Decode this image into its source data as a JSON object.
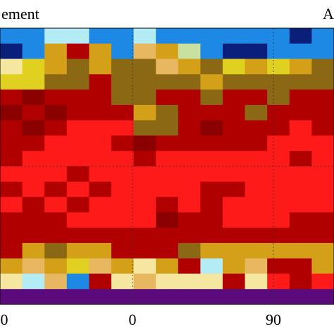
{
  "panel": {
    "title": "ement",
    "label": "A"
  },
  "x_tick_labels": [
    "0",
    "0",
    "90"
  ],
  "cell_colors": [
    [
      "#1e88e5",
      "#1e88e5",
      "#b3ecf5",
      "#b3ecf5",
      "#1e88e5",
      "#1e88e5",
      "#b3ecf5",
      "#1e88e5",
      "#1e88e5",
      "#1e88e5",
      "#1e88e5",
      "#1e88e5",
      "#1e88e5",
      "#0a1f7a",
      "#1e88e5"
    ],
    [
      "#0a1f7a",
      "#1e88e5",
      "#d4a017",
      "#b00000",
      "#d4a017",
      "#1e88e5",
      "#e8b860",
      "#d4a017",
      "#c8e0a0",
      "#1e88e5",
      "#0a1f7a",
      "#0a1f7a",
      "#1e88e5",
      "#1e88e5",
      "#1e88e5"
    ],
    [
      "#f5e6a0",
      "#e0d020",
      "#d4a017",
      "#8b6914",
      "#d4a017",
      "#8b6914",
      "#8b6914",
      "#e8b860",
      "#d4a017",
      "#8b6914",
      "#e0d020",
      "#d4a017",
      "#e0d020",
      "#d4a017",
      "#8b6914"
    ],
    [
      "#e0d020",
      "#e0d020",
      "#8b6914",
      "#8b6914",
      "#b00000",
      "#8b6914",
      "#8b6914",
      "#8b6914",
      "#8b6914",
      "#d4a017",
      "#8b6914",
      "#8b6914",
      "#8b6914",
      "#8b6914",
      "#8b6914"
    ],
    [
      "#b00000",
      "#8b0000",
      "#b00000",
      "#b00000",
      "#b00000",
      "#8b6914",
      "#8b6914",
      "#b00000",
      "#b00000",
      "#8b6914",
      "#b00000",
      "#b00000",
      "#8b6914",
      "#b00000",
      "#b00000"
    ],
    [
      "#8b0000",
      "#b00000",
      "#8b0000",
      "#b00000",
      "#b00000",
      "#b00000",
      "#d4a017",
      "#8b6914",
      "#b00000",
      "#b00000",
      "#b00000",
      "#8b6914",
      "#b00000",
      "#b00000",
      "#b00000"
    ],
    [
      "#b00000",
      "#8b0000",
      "#b00000",
      "#ff1a1a",
      "#ff1a1a",
      "#ff1a1a",
      "#8b6914",
      "#8b6914",
      "#b00000",
      "#8b0000",
      "#b00000",
      "#b00000",
      "#b00000",
      "#ff1a1a",
      "#b00000"
    ],
    [
      "#b00000",
      "#b00000",
      "#ff1a1a",
      "#ff1a1a",
      "#ff1a1a",
      "#b00000",
      "#8b0000",
      "#b00000",
      "#b00000",
      "#b00000",
      "#b00000",
      "#b00000",
      "#ff1a1a",
      "#ff1a1a",
      "#ff1a1a"
    ],
    [
      "#b00000",
      "#ff1a1a",
      "#ff1a1a",
      "#ff1a1a",
      "#ff1a1a",
      "#ff1a1a",
      "#b00000",
      "#ff1a1a",
      "#ff1a1a",
      "#ff1a1a",
      "#ff1a1a",
      "#ff1a1a",
      "#ff1a1a",
      "#b00000",
      "#ff1a1a"
    ],
    [
      "#ff1a1a",
      "#ff1a1a",
      "#ff1a1a",
      "#b00000",
      "#ff1a1a",
      "#ff1a1a",
      "#ff1a1a",
      "#ff1a1a",
      "#ff1a1a",
      "#ff1a1a",
      "#ff1a1a",
      "#ff1a1a",
      "#ff1a1a",
      "#ff1a1a",
      "#ff1a1a"
    ],
    [
      "#b00000",
      "#ff1a1a",
      "#b00000",
      "#ff1a1a",
      "#b00000",
      "#ff1a1a",
      "#ff1a1a",
      "#ff1a1a",
      "#ff1a1a",
      "#b00000",
      "#b00000",
      "#ff1a1a",
      "#ff1a1a",
      "#ff1a1a",
      "#ff1a1a"
    ],
    [
      "#ff1a1a",
      "#b00000",
      "#ff1a1a",
      "#b00000",
      "#ff1a1a",
      "#ff1a1a",
      "#ff1a1a",
      "#b00000",
      "#ff1a1a",
      "#b00000",
      "#ff1a1a",
      "#ff1a1a",
      "#ff1a1a",
      "#ff1a1a",
      "#ff1a1a"
    ],
    [
      "#b00000",
      "#b00000",
      "#b00000",
      "#ff1a1a",
      "#ff1a1a",
      "#ff1a1a",
      "#ff1a1a",
      "#8b0000",
      "#b00000",
      "#b00000",
      "#ff1a1a",
      "#ff1a1a",
      "#ff1a1a",
      "#b00000",
      "#b00000"
    ],
    [
      "#b00000",
      "#b00000",
      "#b00000",
      "#b00000",
      "#b00000",
      "#b00000",
      "#b00000",
      "#b00000",
      "#b00000",
      "#b00000",
      "#b00000",
      "#b00000",
      "#b00000",
      "#b00000",
      "#b00000"
    ],
    [
      "#b00000",
      "#d4a017",
      "#8b6914",
      "#d4a017",
      "#d4a017",
      "#b00000",
      "#b00000",
      "#b00000",
      "#8b6914",
      "#d4a017",
      "#d4a017",
      "#d4a017",
      "#d4a017",
      "#d4a017",
      "#d4a017"
    ],
    [
      "#d4a017",
      "#e8b860",
      "#d4a017",
      "#e0d020",
      "#e8b860",
      "#d4a017",
      "#f5e6a0",
      "#d4a017",
      "#b00000",
      "#b3ecf5",
      "#d4a017",
      "#e8b860",
      "#b00000",
      "#b00000",
      "#d4a017"
    ],
    [
      "#f5e6a0",
      "#b3ecf5",
      "#e8b860",
      "#1e88e5",
      "#b00000",
      "#f5e6a0",
      "#e8b860",
      "#f5e6a0",
      "#f5e6a0",
      "#f5e6a0",
      "#b00000",
      "#f5e6a0",
      "#ff1a1a",
      "#b00000",
      "#ff1a1a"
    ],
    [
      "#5a0a7a",
      "#5a0a7a",
      "#5a0a7a",
      "#5a0a7a",
      "#5a0a7a",
      "#5a0a7a",
      "#5a0a7a",
      "#5a0a7a",
      "#5a0a7a",
      "#5a0a7a",
      "#5a0a7a",
      "#5a0a7a",
      "#5a0a7a",
      "#5a0a7a",
      "#5a0a7a"
    ]
  ]
}
